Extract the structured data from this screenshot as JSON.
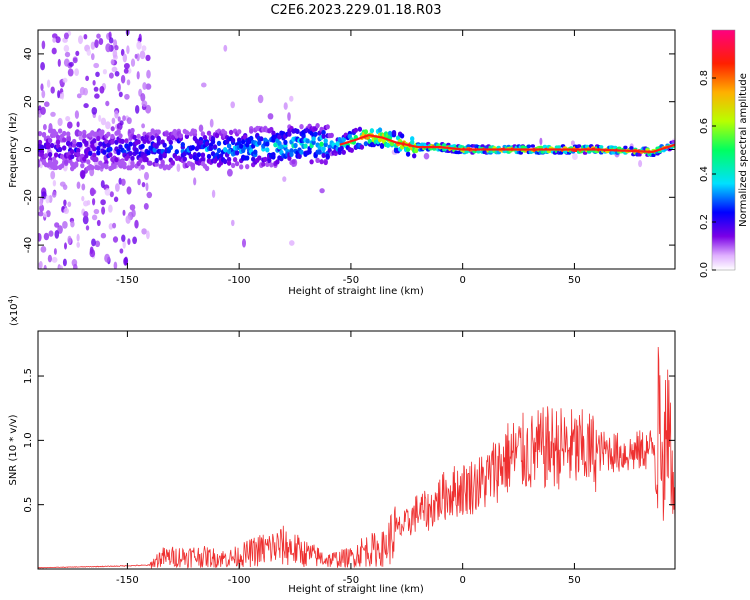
{
  "chart_data": [
    {
      "type": "heatmap",
      "title": "C2E6.2023.229.01.18.R03",
      "xlabel": "Height of straight line (km)",
      "ylabel": "Frequency (Hz)",
      "xlim": [
        -190,
        95
      ],
      "ylim": [
        -50,
        50
      ],
      "x_ticks": [
        -150,
        -100,
        -50,
        0,
        50
      ],
      "y_ticks": [
        -40,
        -20,
        0,
        20,
        40
      ],
      "colorbar": {
        "label": "Normalized spectral amplitude",
        "range": [
          0,
          1
        ],
        "ticks": [
          0.0,
          0.2,
          0.4,
          0.6,
          0.8
        ]
      },
      "ridge": {
        "x": [
          -190,
          -140,
          -110,
          -90,
          -70,
          -55,
          -48,
          -42,
          -36,
          -30,
          -25,
          -20,
          -10,
          0,
          10,
          30,
          60,
          85,
          95
        ],
        "frequency": [
          0,
          0,
          0,
          1,
          2,
          2,
          4,
          6,
          5,
          3,
          2,
          1,
          1,
          0,
          0,
          0,
          0,
          -1,
          2
        ],
        "amplitude": [
          0.2,
          0.3,
          0.35,
          0.4,
          0.45,
          0.5,
          0.7,
          0.85,
          0.8,
          0.75,
          0.8,
          0.85,
          0.9,
          0.95,
          0.98,
          0.98,
          0.97,
          0.9,
          0.6
        ]
      }
    },
    {
      "type": "line",
      "xlabel": "Height of straight line (km)",
      "ylabel": "SNR (10 * v/v)",
      "multiplier_label": "(x10",
      "multiplier_exp": "4",
      "xlim": [
        -190,
        95
      ],
      "ylim": [
        0,
        18500
      ],
      "x_ticks": [
        -150,
        -100,
        -50,
        0,
        50
      ],
      "y_ticks": [
        5000,
        10000,
        15000
      ],
      "y_tick_labels": [
        "0.5",
        "1.0",
        "1.5"
      ],
      "color": "#ee3030",
      "series": [
        {
          "x": [
            -190,
            -160,
            -140,
            -135,
            -120,
            -105,
            -100,
            -90,
            -80,
            -70,
            -60,
            -50,
            -45,
            -40,
            -35,
            -30,
            -25,
            -20,
            -15,
            -10,
            -5,
            0,
            5,
            10,
            15,
            20,
            25,
            30,
            35,
            40,
            45,
            50,
            55,
            60,
            65,
            70,
            75,
            80,
            85,
            88,
            90,
            92,
            95
          ],
          "values": [
            100,
            200,
            300,
            900,
            1000,
            800,
            1000,
            1500,
            1800,
            1200,
            700,
            900,
            1400,
            1500,
            1600,
            3000,
            3500,
            4500,
            4500,
            5500,
            6000,
            6200,
            6500,
            6800,
            7800,
            8600,
            9000,
            9000,
            9300,
            9500,
            9400,
            9300,
            9200,
            9100,
            9200,
            9000,
            9000,
            9200,
            9400,
            10500,
            8500,
            11000,
            6500
          ]
        }
      ]
    }
  ]
}
